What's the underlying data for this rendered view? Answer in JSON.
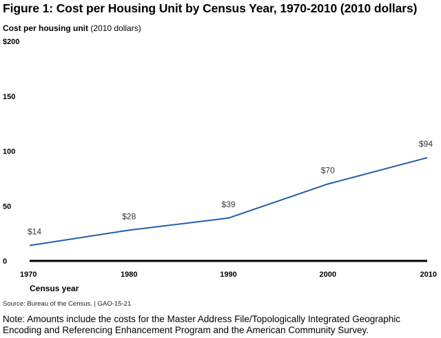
{
  "chart_data": {
    "type": "line",
    "title": "Figure 1: Cost per Housing Unit by Census Year, 1970-2010 (2010 dollars)",
    "ylabel_bold": "Cost per housing unit",
    "ylabel_unit": "(2010 dollars)",
    "xlabel": "Census year",
    "x": [
      1970,
      1980,
      1990,
      2000,
      2010
    ],
    "series": [
      {
        "name": "Cost per housing unit",
        "values": [
          14,
          28,
          39,
          70,
          94
        ],
        "labels": [
          "$14",
          "$28",
          "$39",
          "$70",
          "$94"
        ],
        "color": "#1f5fa6"
      }
    ],
    "ylim": [
      0,
      200
    ],
    "yticks": [
      0,
      50,
      100,
      150,
      200
    ],
    "ytick_labels": [
      "0",
      "50",
      "100",
      "150",
      "$200"
    ],
    "xticks": [
      "1970",
      "1980",
      "1990",
      "2000",
      "2010"
    ],
    "grid": false,
    "legend": "none"
  },
  "source": "Source: Bureau of the Census. | GAO-15-21",
  "note": "Note: Amounts include the costs for the Master Address File/Topologically Integrated Geographic Encoding and Referencing Enhancement Program and the American Community Survey."
}
